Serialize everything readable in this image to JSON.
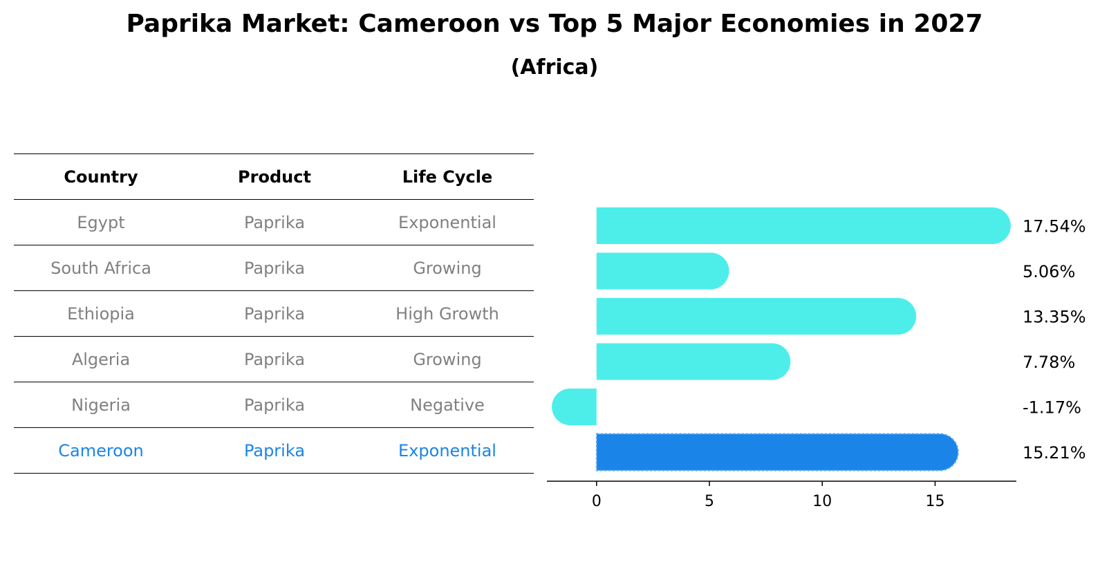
{
  "title": "Paprika Market: Cameroon vs Top 5 Major Economies in 2027",
  "subtitle": "(Africa)",
  "colors": {
    "bar": "#4deeea",
    "highlight_bar": "#1a84e8",
    "muted_text": "#808080",
    "highlight_text": "#1a84e8"
  },
  "table": {
    "headers": [
      "Country",
      "Product",
      "Life Cycle"
    ],
    "rows": [
      [
        "Egypt",
        "Paprika",
        "Exponential"
      ],
      [
        "South Africa",
        "Paprika",
        "Growing"
      ],
      [
        "Ethiopia",
        "Paprika",
        "High Growth"
      ],
      [
        "Algeria",
        "Paprika",
        "Growing"
      ],
      [
        "Nigeria",
        "Paprika",
        "Negative"
      ],
      [
        "Cameroon",
        "Paprika",
        "Exponential"
      ]
    ],
    "highlight_row": 5
  },
  "chart_data": {
    "type": "bar",
    "orientation": "horizontal",
    "categories": [
      "Egypt",
      "South Africa",
      "Ethiopia",
      "Algeria",
      "Nigeria",
      "Cameroon"
    ],
    "values": [
      17.54,
      5.06,
      13.35,
      7.78,
      -1.17,
      15.21
    ],
    "value_labels": [
      "17.54%",
      "5.06%",
      "13.35%",
      "7.78%",
      "-1.17%",
      "15.21%"
    ],
    "highlight_index": 5,
    "xlim": [
      -2.2,
      18.6
    ],
    "xticks": [
      0,
      5,
      10,
      15
    ],
    "grid": false
  }
}
